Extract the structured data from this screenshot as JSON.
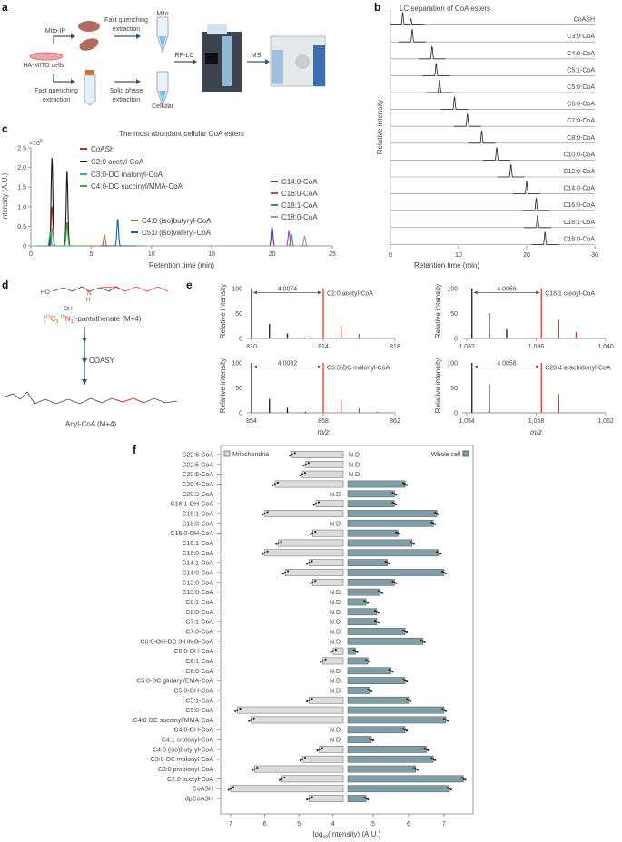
{
  "panel_labels": [
    "a",
    "b",
    "c",
    "d",
    "e",
    "f"
  ],
  "panel_a": {
    "mito_ip": "Mito-IP",
    "fast_q1": "Fast quenching",
    "extraction1": "extraction",
    "mito": "Mito",
    "cells": "HA-MITO cells",
    "fast_q2": "Fast quenching",
    "extraction2": "extraction",
    "spe1": "Solid phase",
    "spe2": "extraction",
    "cellular": "Cellular",
    "rplc": "RP-LC",
    "ms": "MS"
  },
  "chart_data": [
    {
      "id": "b",
      "type": "line",
      "title": "LC separation of CoA esters",
      "xlabel": "Retention time (min)",
      "ylabel": "Relative intensity",
      "xlim": [
        0,
        30
      ],
      "xticks": [
        0,
        10,
        20,
        30
      ],
      "traces": [
        {
          "name": "CoASH",
          "peaks": [
            1.8,
            3.0
          ],
          "heights": [
            1,
            0.5
          ]
        },
        {
          "name": "C3:0-CoA",
          "peaks": [
            3.2
          ],
          "heights": [
            1
          ]
        },
        {
          "name": "C4:0-CoA",
          "peaks": [
            6.1
          ],
          "heights": [
            1
          ]
        },
        {
          "name": "C5:1-CoA",
          "peaks": [
            6.7
          ],
          "heights": [
            1
          ]
        },
        {
          "name": "C5:0-CoA",
          "peaks": [
            7.2
          ],
          "heights": [
            1
          ]
        },
        {
          "name": "C6:0-CoA",
          "peaks": [
            9.4
          ],
          "heights": [
            1
          ]
        },
        {
          "name": "C7:0-CoA",
          "peaks": [
            11.3
          ],
          "heights": [
            1
          ]
        },
        {
          "name": "C8:0-CoA",
          "peaks": [
            13.4
          ],
          "heights": [
            1
          ]
        },
        {
          "name": "C10:0-CoA",
          "peaks": [
            15.6
          ],
          "heights": [
            1
          ]
        },
        {
          "name": "C12:0-CoA",
          "peaks": [
            17.7
          ],
          "heights": [
            1
          ]
        },
        {
          "name": "C14:0-CoA",
          "peaks": [
            20.0
          ],
          "heights": [
            1
          ]
        },
        {
          "name": "C16:0-CoA",
          "peaks": [
            21.4
          ],
          "heights": [
            1
          ]
        },
        {
          "name": "C18:1-CoA",
          "peaks": [
            21.6
          ],
          "heights": [
            1
          ]
        },
        {
          "name": "C18:0-CoA",
          "peaks": [
            22.7
          ],
          "heights": [
            1
          ]
        }
      ]
    },
    {
      "id": "c",
      "type": "line",
      "title": "The most abundant cellular CoA esters",
      "xlabel": "Retention time (min)",
      "ylabel": "Intensity (A.U.)",
      "yscale_label": "×10",
      "yscale_exp": "6",
      "xlim": [
        0,
        25
      ],
      "ylim": [
        0,
        2.5
      ],
      "xticks": [
        0,
        5,
        10,
        15,
        20,
        25
      ],
      "yticks": [
        0,
        0.5,
        1.0,
        1.5,
        2.0,
        2.5
      ],
      "ytick_labels": [
        "0",
        "0.5",
        "1.0",
        "1.5",
        "2.0",
        "2.5"
      ],
      "series": [
        {
          "name": "CoASH",
          "color": "#c0272d",
          "peaks": [
            1.75,
            3.0
          ],
          "heights": [
            1.0,
            0.6
          ]
        },
        {
          "name": "C2:0 acetyl-CoA",
          "color": "#1a1a1a",
          "peaks": [
            1.75,
            3.0
          ],
          "heights": [
            2.25,
            1.9
          ]
        },
        {
          "name": "C3:0-DC malonyl-CoA",
          "color": "#3fa0e0",
          "peaks": [
            1.6
          ],
          "heights": [
            0.33
          ]
        },
        {
          "name": "C4:0-DC succinyl/MMA-CoA",
          "color": "#3aa844",
          "peaks": [
            1.8,
            3.0
          ],
          "heights": [
            0.45,
            0.57
          ]
        },
        {
          "name": "C4:0 (iso)butyryl-CoA",
          "color": "#b5652b",
          "peaks": [
            6.1
          ],
          "heights": [
            0.28
          ]
        },
        {
          "name": "C5:0 (iso)valeryl-CoA",
          "color": "#1f5f9e",
          "peaks": [
            7.2
          ],
          "heights": [
            0.67
          ]
        },
        {
          "name": "C14:0-CoA",
          "color": "#5b2d9c",
          "peaks": [
            20.0
          ],
          "heights": [
            0.48
          ]
        },
        {
          "name": "C16:0-CoA",
          "color": "#b63cb5",
          "peaks": [
            21.4
          ],
          "heights": [
            0.37
          ]
        },
        {
          "name": "C18:1-CoA",
          "color": "#1e9e6a",
          "peaks": [
            21.6
          ],
          "heights": [
            0.3
          ]
        },
        {
          "name": "C18:0-CoA",
          "color": "#999999",
          "peaks": [
            22.7
          ],
          "heights": [
            0.25
          ]
        }
      ]
    },
    {
      "id": "e",
      "type": "bar",
      "ylabel": "Relative intensity",
      "xlabel": "m/z",
      "ylim": [
        0,
        100
      ],
      "yticks": [
        0,
        50,
        100
      ],
      "spectra": [
        {
          "name": "C2:0 acetyl-CoA",
          "delta": "4.0074",
          "xlim": [
            810,
            818
          ],
          "xticks": [
            "810",
            "814",
            "818"
          ],
          "unlabeled": [
            [
              810,
              100
            ],
            [
              811,
              29
            ],
            [
              812,
              10
            ],
            [
              813,
              2
            ]
          ],
          "labeled": [
            [
              814,
              100
            ],
            [
              815,
              25
            ],
            [
              816,
              9
            ],
            [
              817,
              1
            ]
          ]
        },
        {
          "name": "C18:1 oleoyl-CoA",
          "delta": "4.0056",
          "xlim": [
            1032,
            1040
          ],
          "xticks": [
            "1,032",
            "1,036",
            "1,040"
          ],
          "unlabeled": [
            [
              1032.3,
              100
            ],
            [
              1033.3,
              51
            ],
            [
              1034.3,
              18
            ]
          ],
          "labeled": [
            [
              1036.3,
              100
            ],
            [
              1037.3,
              37
            ],
            [
              1038.3,
              13
            ]
          ]
        },
        {
          "name": "C3:0-DC malonyl-CoA",
          "delta": "4.0082",
          "xlim": [
            854,
            862
          ],
          "xticks": [
            "854",
            "858",
            "862"
          ],
          "unlabeled": [
            [
              854,
              100
            ],
            [
              855,
              28
            ],
            [
              856,
              10
            ],
            [
              857,
              2
            ]
          ],
          "labeled": [
            [
              858,
              100
            ],
            [
              859,
              26
            ],
            [
              860,
              9
            ],
            [
              861,
              2
            ]
          ]
        },
        {
          "name": "C20:4 arachidonyl-CoA",
          "delta": "4.0058",
          "xlim": [
            1054,
            1062
          ],
          "xticks": [
            "1,054",
            "1,058",
            "1,062"
          ],
          "unlabeled": [
            [
              1054.3,
              100
            ],
            [
              1055.3,
              57
            ]
          ],
          "labeled": [
            [
              1058.3,
              100
            ],
            [
              1059.3,
              38
            ]
          ]
        }
      ],
      "colors": {
        "unlabeled": "#1a1a1a",
        "labeled": "#e8372c"
      }
    },
    {
      "id": "f",
      "type": "bar",
      "orientation": "horizontal",
      "xlabel_pre": "log",
      "xlabel_sub": "10",
      "xlabel_post": "(Intensity) (A.U.)",
      "legend": {
        "mito": "Mitochondria",
        "cell": "Whole cell"
      },
      "nd": "N.D.",
      "colors": {
        "mito": "#dcdcdc",
        "cell": "#7f9fa8"
      },
      "mito_xlim": [
        7.0,
        3.7
      ],
      "mito_xticks": [
        7,
        6,
        5,
        4
      ],
      "cell_xlim": [
        4.3,
        7.6
      ],
      "cell_xticks": [
        5,
        6,
        7
      ],
      "categories": [
        "C22:6-CoA",
        "C22:5-CoA",
        "C20:5-CoA",
        "C20:4-CoA",
        "C20:3-CoA",
        "C18:1-OH-CoA",
        "C18:1-CoA",
        "C18:0-CoA",
        "C16:0-OH-CoA",
        "C16:1-CoA",
        "C16:0-CoA",
        "C14:1-CoA",
        "C14:0-CoA",
        "C12:0-CoA",
        "C10:0-CoA",
        "C8:1-CoA",
        "C8:0-CoA",
        "C7:1-CoA",
        "C7:0-CoA",
        "C6:0-OH-DC 3-HMG-CoA",
        "C6:0-OH-CoA",
        "C6:1-CoA",
        "C6:0-CoA",
        "C5:0-DC glutaryl/EMA-CoA",
        "C5:0-OH-CoA",
        "C5:1-CoA",
        "C5:0-CoA",
        "C4:0-DC succinyl/MMA-CoA",
        "C4:0-OH-CoA",
        "C4:1 crotonyl-CoA",
        "C4:0 (iso)butyryl-CoA",
        "C3:0-DC malonyl-CoA",
        "C3:0 propionyl-CoA",
        "C2:0 acetyl-CoA",
        "CoASH",
        "dpCoASH"
      ],
      "mito": [
        5.2,
        4.8,
        4.9,
        5.7,
        null,
        4.5,
        6.0,
        null,
        4.6,
        5.6,
        6.0,
        4.7,
        5.4,
        4.6,
        null,
        null,
        null,
        null,
        null,
        null,
        4.0,
        4.3,
        null,
        null,
        null,
        4.7,
        6.8,
        6.4,
        null,
        null,
        4.4,
        4.9,
        6.3,
        5.5,
        7.0,
        4.7
      ],
      "cell": [
        null,
        null,
        null,
        5.9,
        5.6,
        5.6,
        6.8,
        6.7,
        5.7,
        6.1,
        6.85,
        5.4,
        7.0,
        5.6,
        5.2,
        4.8,
        5.1,
        5.1,
        5.9,
        6.4,
        4.5,
        4.85,
        5.5,
        5.9,
        4.9,
        6.0,
        7.0,
        7.05,
        5.9,
        4.95,
        6.5,
        6.7,
        6.2,
        7.55,
        7.15,
        4.8
      ]
    }
  ],
  "panel_d": {
    "iso1": "13",
    "iso2": "C",
    "iso3": "3",
    "iso4": "15",
    "iso5": "N",
    "iso6": "1",
    "pant": "]-pantothenate (M+4)",
    "enzyme": "COASY",
    "product": "Acyl-CoA (M+4)",
    "atoms": {
      "ho": "HO",
      "oh": "OH",
      "n": "N",
      "h": "H",
      "c13": "13C"
    }
  }
}
